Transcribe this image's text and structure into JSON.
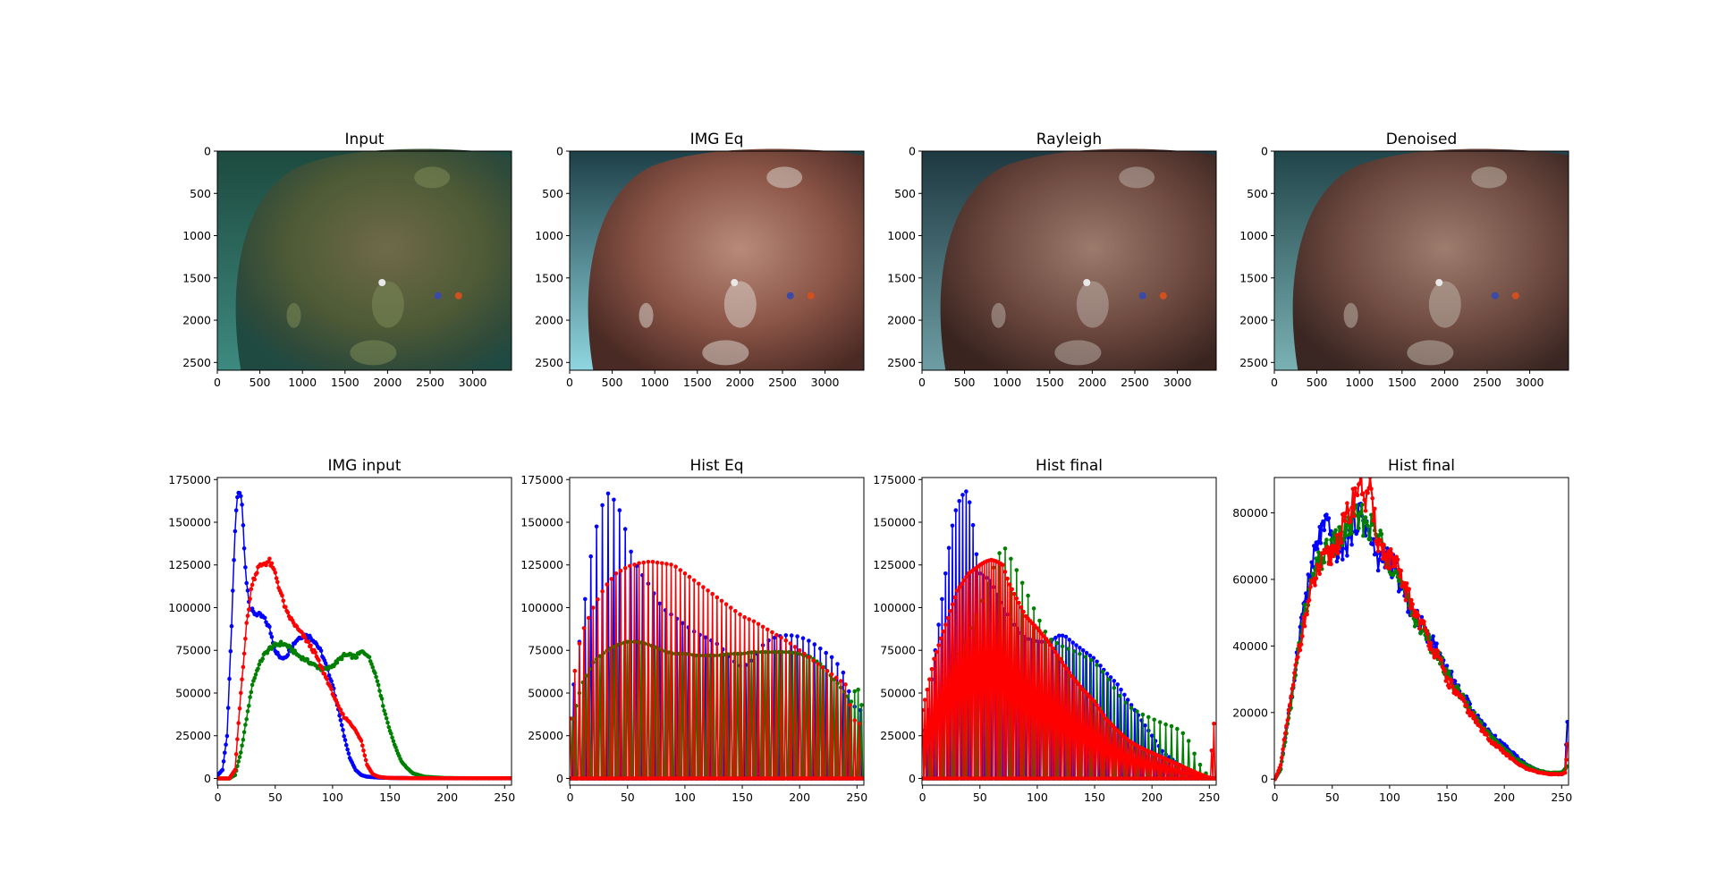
{
  "figure": {
    "image_panels": [
      {
        "title": "Input",
        "tone": "input"
      },
      {
        "title": "IMG Eq",
        "tone": "equalized"
      },
      {
        "title": "Rayleigh",
        "tone": "rayleigh"
      },
      {
        "title": "Denoised",
        "tone": "denoised"
      }
    ],
    "image_axes": {
      "xticks": [
        "0",
        "500",
        "1000",
        "1500",
        "2000",
        "2500",
        "3000"
      ],
      "yticks": [
        "0",
        "500",
        "1000",
        "1500",
        "2000",
        "2500"
      ],
      "xlim": [
        0,
        3456
      ],
      "ylim": [
        2592,
        0
      ]
    },
    "colors": {
      "blue": "#0000ff",
      "green": "#008000",
      "red": "#ff0000"
    }
  },
  "chart_data": [
    {
      "type": "line",
      "title": "IMG input",
      "xlim": [
        0,
        255
      ],
      "ylim": [
        0,
        175000
      ],
      "xticks": [
        "0",
        "50",
        "100",
        "150",
        "200",
        "250"
      ],
      "yticks": [
        "0",
        "25000",
        "50000",
        "75000",
        "100000",
        "125000",
        "150000",
        "175000"
      ],
      "series": [
        {
          "color": "blue",
          "x": [
            0,
            4,
            8,
            12,
            15,
            17,
            19,
            21,
            23,
            25,
            28,
            31,
            35,
            40,
            45,
            50,
            55,
            60,
            65,
            70,
            75,
            80,
            85,
            90,
            95,
            100,
            105,
            110,
            115,
            120,
            125,
            130,
            140,
            150,
            160,
            180,
            200,
            230,
            255
          ],
          "values": [
            2000,
            5000,
            25000,
            90000,
            145000,
            165000,
            168000,
            160000,
            135000,
            115000,
            100000,
            97000,
            96000,
            94000,
            88000,
            75000,
            70000,
            72000,
            78000,
            82000,
            84000,
            83000,
            80000,
            74000,
            65000,
            55000,
            40000,
            25000,
            12000,
            5000,
            2000,
            1000,
            500,
            300,
            200,
            100,
            100,
            100,
            100
          ]
        },
        {
          "color": "green",
          "x": [
            0,
            10,
            15,
            20,
            25,
            30,
            35,
            40,
            45,
            50,
            55,
            60,
            65,
            70,
            75,
            80,
            85,
            90,
            95,
            100,
            105,
            110,
            115,
            120,
            125,
            130,
            135,
            140,
            145,
            150,
            155,
            160,
            165,
            170,
            180,
            190,
            200,
            220,
            240,
            255
          ],
          "values": [
            0,
            0,
            2000,
            15000,
            35000,
            55000,
            65000,
            72000,
            76000,
            78000,
            79000,
            78000,
            75000,
            72000,
            70000,
            68000,
            66000,
            64000,
            64000,
            66000,
            69000,
            72000,
            72000,
            71000,
            74000,
            73000,
            66000,
            55000,
            40000,
            28000,
            18000,
            10000,
            6000,
            3000,
            1000,
            500,
            200,
            100,
            100,
            100
          ]
        },
        {
          "color": "red",
          "x": [
            0,
            10,
            15,
            20,
            25,
            30,
            35,
            40,
            45,
            50,
            55,
            60,
            65,
            70,
            75,
            80,
            85,
            90,
            95,
            100,
            105,
            110,
            115,
            120,
            125,
            130,
            135,
            140,
            145,
            150,
            160,
            170,
            180,
            200,
            230,
            255
          ],
          "values": [
            0,
            0,
            5000,
            50000,
            90000,
            115000,
            123000,
            126000,
            127000,
            120000,
            108000,
            97000,
            92000,
            87000,
            83000,
            78000,
            73000,
            65000,
            58000,
            50000,
            42000,
            36000,
            33000,
            28000,
            22000,
            8000,
            2500,
            1000,
            500,
            300,
            200,
            100,
            100,
            100,
            100,
            100
          ]
        }
      ]
    },
    {
      "type": "line",
      "title": "Hist Eq",
      "xlim": [
        0,
        255
      ],
      "ylim": [
        0,
        175000
      ],
      "xticks": [
        "0",
        "50",
        "100",
        "150",
        "200",
        "250"
      ],
      "yticks": [
        "0",
        "25000",
        "50000",
        "75000",
        "100000",
        "125000",
        "150000",
        "175000"
      ],
      "series": [
        {
          "color": "blue",
          "mode": "spikes",
          "stride": 5,
          "phase": 2,
          "x": [
            0,
            10,
            20,
            30,
            35,
            40,
            45,
            50,
            55,
            60,
            70,
            80,
            90,
            100,
            110,
            120,
            130,
            140,
            150,
            160,
            170,
            180,
            190,
            200,
            210,
            220,
            230,
            240,
            245,
            250,
            255
          ],
          "values": [
            40000,
            90000,
            140000,
            165000,
            168000,
            160000,
            155000,
            140000,
            128000,
            122000,
            112000,
            100000,
            95000,
            90000,
            85000,
            82000,
            78000,
            70000,
            65000,
            70000,
            80000,
            83000,
            84000,
            83000,
            80000,
            75000,
            70000,
            60000,
            45000,
            40000,
            40000
          ]
        },
        {
          "color": "green",
          "mode": "spikes",
          "stride": 3,
          "phase": 1,
          "x": [
            0,
            10,
            20,
            30,
            40,
            50,
            60,
            70,
            80,
            90,
            100,
            110,
            120,
            130,
            140,
            150,
            160,
            170,
            180,
            190,
            200,
            210,
            220,
            230,
            240,
            245,
            250,
            255
          ],
          "values": [
            30000,
            55000,
            68000,
            74000,
            78000,
            80000,
            80000,
            78000,
            75000,
            73000,
            73000,
            72000,
            72000,
            72000,
            73000,
            73000,
            74000,
            74000,
            74000,
            74000,
            73000,
            71000,
            66000,
            58000,
            50000,
            45000,
            55000,
            40000
          ]
        },
        {
          "color": "red",
          "mode": "spikes",
          "stride": 4,
          "phase": 0,
          "x": [
            0,
            5,
            10,
            20,
            30,
            40,
            50,
            60,
            70,
            80,
            90,
            100,
            110,
            120,
            130,
            140,
            150,
            160,
            170,
            180,
            190,
            200,
            210,
            220,
            230,
            240,
            245,
            250,
            255
          ],
          "values": [
            35000,
            70000,
            85000,
            100000,
            112000,
            120000,
            124000,
            126000,
            127000,
            126000,
            125000,
            120000,
            115000,
            110000,
            105000,
            100000,
            95000,
            92000,
            88000,
            84000,
            80000,
            75000,
            70000,
            65000,
            60000,
            55000,
            40000,
            30000,
            35000
          ]
        }
      ]
    },
    {
      "type": "line",
      "title": "Hist final",
      "xlim": [
        0,
        255
      ],
      "ylim": [
        0,
        175000
      ],
      "xticks": [
        "0",
        "50",
        "100",
        "150",
        "200",
        "250"
      ],
      "yticks": [
        "0",
        "25000",
        "50000",
        "75000",
        "100000",
        "125000",
        "150000",
        "175000"
      ],
      "series": [
        {
          "color": "blue",
          "mode": "spikes",
          "stride": 3,
          "phase": 1,
          "x": [
            0,
            5,
            10,
            15,
            20,
            25,
            30,
            35,
            38,
            40,
            43,
            46,
            50,
            55,
            60,
            70,
            80,
            90,
            100,
            110,
            115,
            120,
            125,
            130,
            140,
            150,
            160,
            170,
            180,
            190,
            200,
            210,
            220,
            230,
            240,
            250,
            255
          ],
          "values": [
            20000,
            40000,
            70000,
            95000,
            120000,
            145000,
            160000,
            166000,
            168000,
            165000,
            155000,
            135000,
            120000,
            118000,
            115000,
            100000,
            90000,
            82000,
            80000,
            80000,
            82000,
            84000,
            83000,
            80000,
            75000,
            70000,
            62000,
            55000,
            45000,
            35000,
            25000,
            15000,
            10000,
            5000,
            2000,
            500,
            0
          ]
        },
        {
          "color": "green",
          "mode": "spikes",
          "stride": 5,
          "phase": 3,
          "x": [
            0,
            10,
            20,
            30,
            40,
            50,
            60,
            70,
            80,
            90,
            100,
            110,
            120,
            130,
            140,
            150,
            160,
            170,
            180,
            190,
            200,
            210,
            220,
            230,
            240,
            250,
            255
          ],
          "values": [
            15000,
            35000,
            55000,
            70000,
            85000,
            100000,
            120000,
            137000,
            125000,
            110000,
            95000,
            82000,
            78000,
            75000,
            72000,
            68000,
            60000,
            50000,
            42000,
            38000,
            35000,
            32000,
            30000,
            25000,
            10000,
            0,
            0
          ]
        },
        {
          "color": "red",
          "mode": "spikes",
          "stride": 2,
          "phase": 0,
          "x": [
            0,
            5,
            10,
            15,
            20,
            25,
            30,
            40,
            50,
            55,
            60,
            65,
            70,
            75,
            80,
            90,
            100,
            110,
            120,
            130,
            140,
            150,
            160,
            170,
            180,
            190,
            200,
            210,
            220,
            230,
            240,
            250,
            255
          ],
          "values": [
            40000,
            55000,
            70000,
            80000,
            90000,
            100000,
            110000,
            120000,
            125000,
            127000,
            128000,
            127000,
            125000,
            115000,
            108000,
            95000,
            88000,
            80000,
            70000,
            60000,
            52000,
            45000,
            35000,
            28000,
            22000,
            18000,
            15000,
            12000,
            9000,
            6000,
            3000,
            500,
            40000
          ]
        }
      ]
    },
    {
      "type": "line",
      "title": "Hist final",
      "xlim": [
        0,
        255
      ],
      "ylim": [
        0,
        90000
      ],
      "xticks": [
        "0",
        "50",
        "100",
        "150",
        "200",
        "250"
      ],
      "yticks": [
        "0",
        "20000",
        "40000",
        "60000",
        "80000"
      ],
      "series": [
        {
          "color": "blue",
          "x": [
            0,
            5,
            10,
            15,
            20,
            25,
            30,
            35,
            40,
            45,
            50,
            55,
            60,
            65,
            70,
            75,
            80,
            85,
            90,
            95,
            100,
            105,
            110,
            120,
            130,
            140,
            150,
            160,
            170,
            180,
            190,
            200,
            210,
            220,
            230,
            240,
            250,
            253,
            255
          ],
          "values": [
            0,
            3000,
            15000,
            25000,
            40000,
            52000,
            60000,
            68000,
            74000,
            76000,
            72000,
            68000,
            70000,
            72000,
            78000,
            80000,
            76000,
            70000,
            65000,
            68000,
            66000,
            62000,
            58000,
            50000,
            45000,
            40000,
            33000,
            27000,
            22000,
            17000,
            13000,
            10000,
            7000,
            4000,
            2500,
            1500,
            1500,
            3000,
            17000
          ]
        },
        {
          "color": "green",
          "x": [
            0,
            5,
            10,
            15,
            20,
            25,
            30,
            35,
            40,
            45,
            50,
            55,
            60,
            65,
            70,
            75,
            80,
            85,
            90,
            95,
            100,
            105,
            110,
            120,
            130,
            140,
            150,
            160,
            170,
            180,
            190,
            200,
            210,
            220,
            230,
            240,
            250,
            253,
            255
          ],
          "values": [
            0,
            3000,
            14000,
            24000,
            38000,
            48000,
            56000,
            62000,
            66000,
            68000,
            70000,
            72000,
            74000,
            76000,
            78000,
            78000,
            77000,
            75000,
            73000,
            70000,
            66000,
            62000,
            58000,
            50000,
            44000,
            38000,
            32000,
            26000,
            21000,
            16000,
            12000,
            9000,
            6000,
            4000,
            2500,
            1800,
            2000,
            3000,
            4000
          ]
        },
        {
          "color": "red",
          "x": [
            0,
            5,
            10,
            15,
            20,
            25,
            30,
            35,
            40,
            45,
            50,
            55,
            60,
            65,
            70,
            72,
            75,
            78,
            80,
            82,
            85,
            88,
            90,
            95,
            100,
            105,
            110,
            120,
            130,
            140,
            150,
            160,
            170,
            180,
            190,
            200,
            210,
            220,
            230,
            240,
            250,
            253,
            255
          ],
          "values": [
            0,
            4000,
            16000,
            26000,
            38000,
            46000,
            54000,
            60000,
            64000,
            66000,
            68000,
            72000,
            76000,
            80000,
            85000,
            88000,
            90000,
            86000,
            83000,
            89000,
            80000,
            75000,
            72000,
            68000,
            66000,
            64000,
            60000,
            52000,
            45000,
            38000,
            30000,
            25000,
            20000,
            15000,
            11000,
            8000,
            5000,
            3000,
            2000,
            1500,
            1500,
            2000,
            10000
          ]
        }
      ]
    }
  ]
}
